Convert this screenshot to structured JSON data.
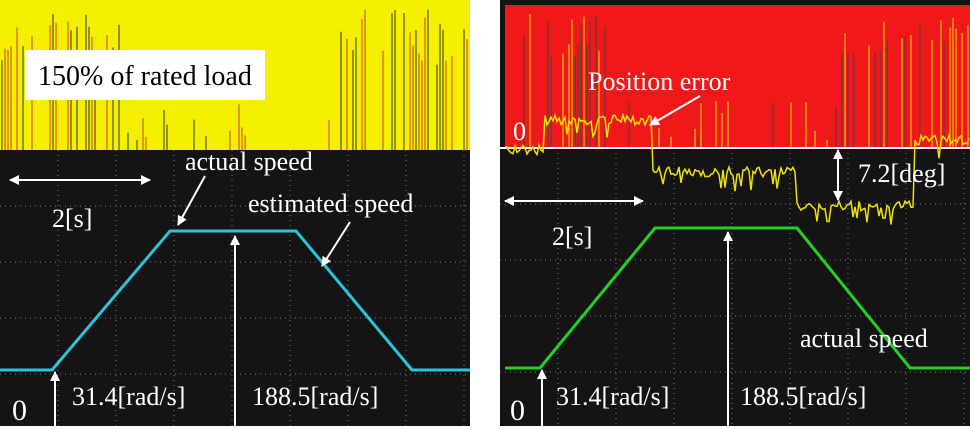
{
  "left_panel": {
    "load_label": "150% of rated load",
    "time_label": "2[s]",
    "actual_speed_label": "actual speed",
    "estimated_speed_label": "estimated speed",
    "low_speed_label": "31.4[rad/s]",
    "high_speed_label": "188.5[rad/s]",
    "zero_label": "0"
  },
  "right_panel": {
    "position_error_label": "Position error",
    "zero_error_label": "0",
    "error_label": "7.2[deg]",
    "time_label": "2[s]",
    "actual_speed_label": "actual speed",
    "low_speed_label": "31.4[rad/s]",
    "high_speed_label": "188.5[rad/s]",
    "zero_speed_label": "0"
  }
}
